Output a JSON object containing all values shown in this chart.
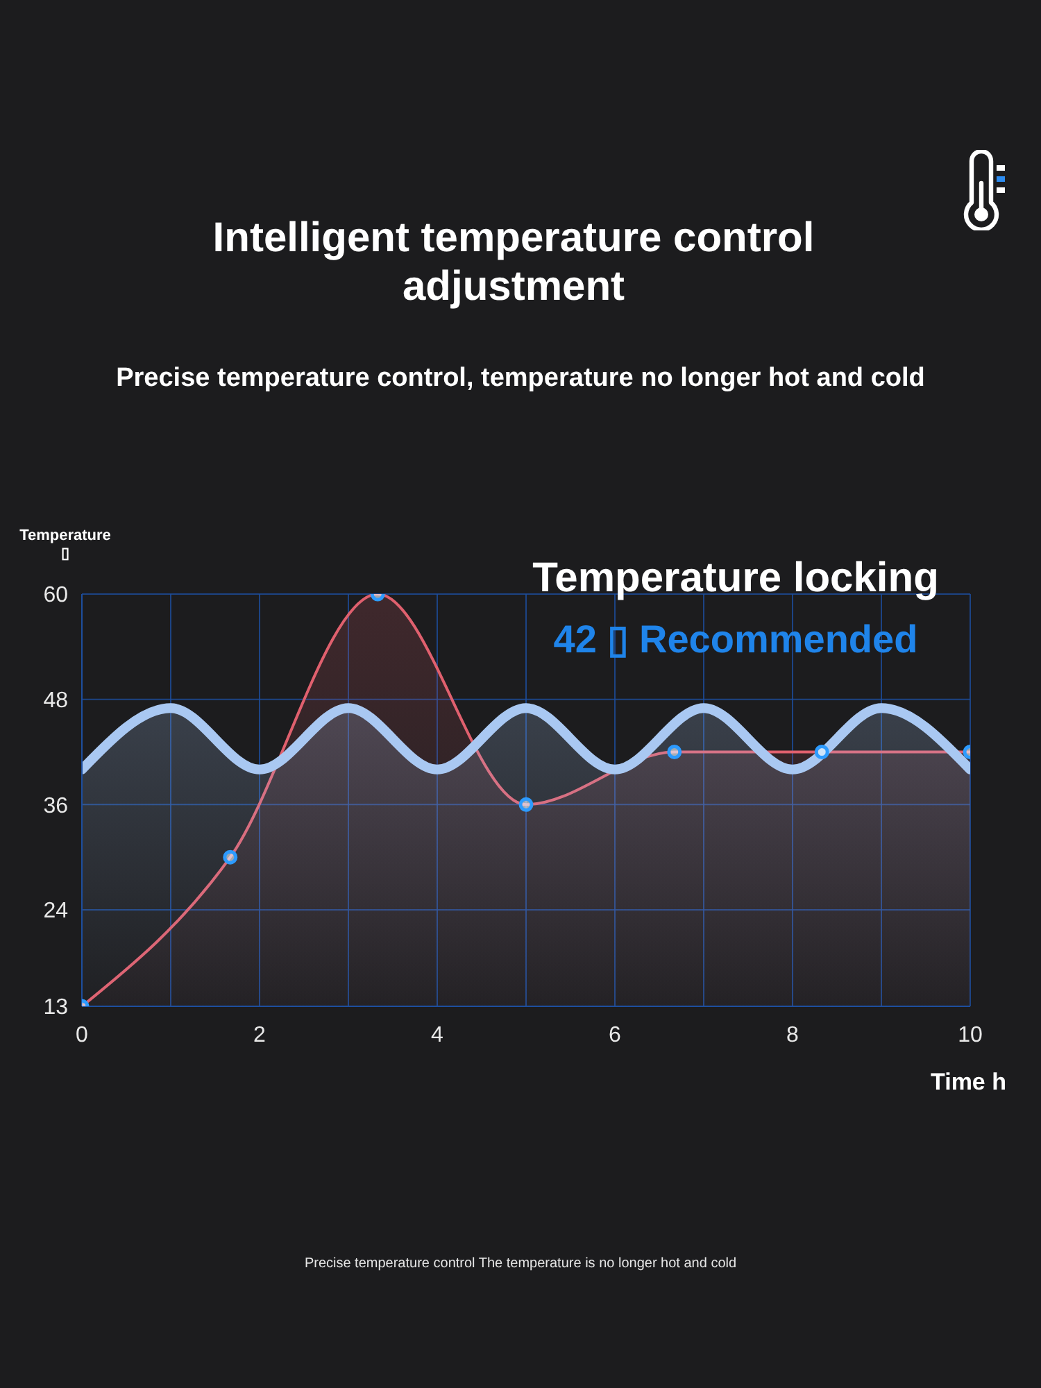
{
  "chart_data": {
    "type": "area",
    "title": "Intelligent temperature control adjustment",
    "subtitle": "Precise temperature control, temperature no longer hot and cold",
    "ylabel": "Temperature ▯",
    "xlabel": "Time h",
    "annotations": [
      "Temperature locking",
      "42 ▯ Recommended",
      "Precise temperature control The temperature is no longer hot and cold"
    ],
    "xlim": [
      0,
      10
    ],
    "xticks": [
      0,
      {
        "value": 1,
        "label": null
      },
      2,
      {
        "value": 3,
        "label": null
      },
      4,
      {
        "value": 5,
        "label": null
      },
      6,
      {
        "value": 7,
        "label": null
      },
      8,
      {
        "value": 9,
        "label": null
      },
      10
    ],
    "ylim": [
      13,
      60
    ],
    "yticks": [
      13,
      24,
      36,
      48,
      60
    ],
    "grid": true,
    "series": [
      {
        "color": "#e0606e",
        "x": [
          0,
          1.67,
          3.33,
          5,
          6.67,
          8.33,
          10
        ],
        "values": [
          13,
          30,
          60,
          36,
          42,
          42,
          42
        ],
        "marker": "circle"
      },
      {
        "color": "#a9c8f2",
        "x": [
          0,
          1,
          2,
          3,
          4,
          5,
          6,
          7,
          8,
          9,
          10
        ],
        "values": [
          40,
          47,
          40,
          47,
          40,
          47,
          40,
          47,
          40,
          47,
          40
        ],
        "marker": "none"
      }
    ]
  }
}
